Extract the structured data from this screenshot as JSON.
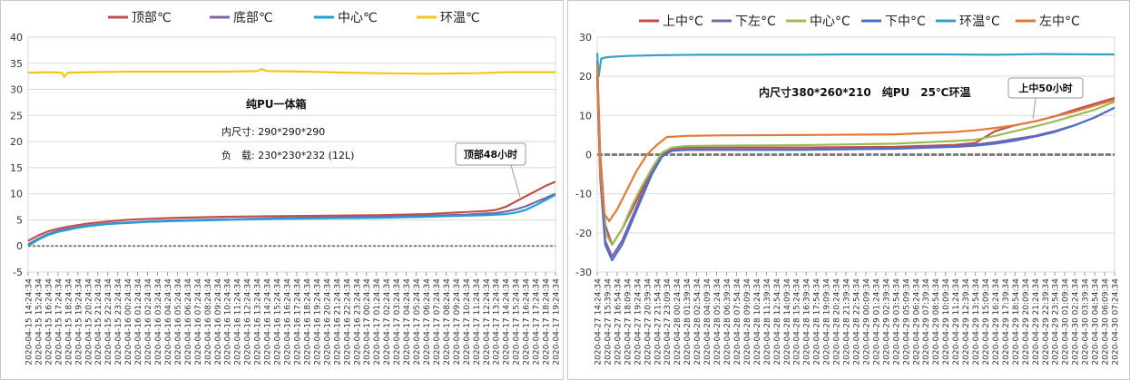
{
  "chart_data": [
    {
      "type": "line",
      "ylim": [
        -5,
        40
      ],
      "yticks": [
        -5,
        0,
        5,
        10,
        15,
        20,
        25,
        30,
        35,
        40
      ],
      "grid": "horizontal",
      "legend": "top",
      "annotations": [
        "纯PU一体箱",
        "内尺寸: 290*290*290",
        "负　载: 230*230*232 (12L)"
      ],
      "callout": "顶部48小时",
      "baseline": {
        "y": 0,
        "color": "#808080"
      },
      "x_labels": [
        "2020-04-15 14:24:34",
        "2020-04-15 15:24:34",
        "2020-04-15 16:24:34",
        "2020-04-15 17:24:34",
        "2020-04-15 18:24:34",
        "2020-04-15 19:24:34",
        "2020-04-15 20:24:34",
        "2020-04-15 21:24:34",
        "2020-04-15 22:24:34",
        "2020-04-15 23:24:34",
        "2020-04-16 00:24:34",
        "2020-04-16 01:24:34",
        "2020-04-16 02:24:34",
        "2020-04-16 03:24:34",
        "2020-04-16 04:24:34",
        "2020-04-16 05:24:34",
        "2020-04-16 06:24:34",
        "2020-04-16 07:24:34",
        "2020-04-16 08:24:34",
        "2020-04-16 09:24:34",
        "2020-04-16 10:24:34",
        "2020-04-16 11:24:34",
        "2020-04-16 12:24:34",
        "2020-04-16 13:24:34",
        "2020-04-16 14:24:34",
        "2020-04-16 15:24:34",
        "2020-04-16 16:24:34",
        "2020-04-16 17:24:34",
        "2020-04-16 18:24:34",
        "2020-04-16 19:24:34",
        "2020-04-16 20:24:34",
        "2020-04-16 21:24:34",
        "2020-04-16 22:24:34",
        "2020-04-16 23:24:34",
        "2020-04-17 00:24:34",
        "2020-04-17 01:24:34",
        "2020-04-17 02:24:34",
        "2020-04-17 03:24:34",
        "2020-04-17 04:24:34",
        "2020-04-17 05:24:34",
        "2020-04-17 06:24:34",
        "2020-04-17 07:24:34",
        "2020-04-17 08:24:34",
        "2020-04-17 09:24:34",
        "2020-04-17 10:24:34",
        "2020-04-17 11:24:34",
        "2020-04-17 12:24:34",
        "2020-04-17 13:24:34",
        "2020-04-17 14:24:34",
        "2020-04-17 15:24:34",
        "2020-04-17 16:24:34",
        "2020-04-17 17:24:34",
        "2020-04-17 18:24:34",
        "2020-04-17 19:24:34"
      ],
      "series": [
        {
          "name": "顶部℃",
          "color": "#c0504d",
          "x": [
            0,
            1,
            2,
            3,
            4,
            5,
            6,
            8,
            10,
            12,
            15,
            20,
            25,
            30,
            35,
            40,
            44,
            46,
            47,
            48,
            49,
            50,
            51,
            52,
            53
          ],
          "values": [
            1,
            2,
            2.8,
            3.3,
            3.7,
            4,
            4.3,
            4.7,
            5,
            5.2,
            5.4,
            5.6,
            5.7,
            5.8,
            5.9,
            6.1,
            6.5,
            6.7,
            6.9,
            7.5,
            8.5,
            9.5,
            10.5,
            11.5,
            12.3
          ]
        },
        {
          "name": "底部℃",
          "color": "#8064a2",
          "x": [
            0,
            1,
            2,
            3,
            4,
            5,
            6,
            8,
            10,
            12,
            15,
            20,
            25,
            30,
            35,
            40,
            44,
            46,
            47,
            48,
            49,
            50,
            51,
            52,
            53
          ],
          "values": [
            0.3,
            1.4,
            2.3,
            2.9,
            3.3,
            3.6,
            3.9,
            4.3,
            4.5,
            4.7,
            4.9,
            5.1,
            5.3,
            5.5,
            5.6,
            5.8,
            6,
            6.2,
            6.3,
            6.6,
            7,
            7.6,
            8.4,
            9.2,
            10
          ]
        },
        {
          "name": "中心℃",
          "color": "#1fa0d8",
          "x": [
            0,
            1,
            2,
            3,
            4,
            5,
            6,
            8,
            10,
            12,
            15,
            20,
            25,
            30,
            35,
            40,
            44,
            46,
            47,
            48,
            49,
            50,
            51,
            52,
            53
          ],
          "values": [
            0,
            1.2,
            2.1,
            2.7,
            3.1,
            3.5,
            3.8,
            4.2,
            4.4,
            4.6,
            4.8,
            5,
            5.2,
            5.3,
            5.4,
            5.6,
            5.8,
            5.9,
            6,
            6.1,
            6.4,
            6.9,
            7.8,
            8.8,
            9.8
          ]
        },
        {
          "name": "环温℃",
          "color": "#f5c518",
          "x": [
            0,
            2,
            3.4,
            3.6,
            4,
            6,
            10,
            15,
            20,
            23,
            23.5,
            24,
            28,
            32,
            35,
            40,
            45,
            48,
            50,
            53
          ],
          "values": [
            33.2,
            33.3,
            33.2,
            32.4,
            33.2,
            33.3,
            33.4,
            33.4,
            33.4,
            33.5,
            33.9,
            33.5,
            33.4,
            33.2,
            33.1,
            33,
            33.1,
            33.3,
            33.3,
            33.3
          ]
        }
      ]
    },
    {
      "type": "line",
      "ylim": [
        -30,
        30
      ],
      "yticks": [
        -30,
        -20,
        -10,
        0,
        10,
        20,
        30
      ],
      "grid": "horizontal",
      "legend": "top",
      "annotations": [
        "内尺寸380*260*210　纯PU　25℃环温"
      ],
      "callout": "上中50小时",
      "baseline": {
        "y": 0,
        "color": "#808080"
      },
      "x_labels": [
        "2020-04-27 14:24:34",
        "2020-04-27 15:39:34",
        "2020-04-27 16:54:34",
        "2020-04-27 18:09:34",
        "2020-04-27 19:24:34",
        "2020-04-27 20:39:34",
        "2020-04-27 21:54:34",
        "2020-04-27 23:09:34",
        "2020-04-28 00:24:34",
        "2020-04-28 01:39:34",
        "2020-04-28 02:54:34",
        "2020-04-28 04:09:34",
        "2020-04-28 05:24:34",
        "2020-04-28 06:39:34",
        "2020-04-28 07:54:34",
        "2020-04-28 09:09:34",
        "2020-04-28 10:24:34",
        "2020-04-28 11:39:34",
        "2020-04-28 12:54:34",
        "2020-04-28 14:09:34",
        "2020-04-28 15:24:34",
        "2020-04-28 16:39:34",
        "2020-04-28 17:54:34",
        "2020-04-28 19:09:34",
        "2020-04-28 20:24:34",
        "2020-04-28 21:39:34",
        "2020-04-28 22:54:34",
        "2020-04-29 00:09:34",
        "2020-04-29 01:24:34",
        "2020-04-29 02:39:34",
        "2020-04-29 03:54:34",
        "2020-04-29 05:09:34",
        "2020-04-29 06:24:34",
        "2020-04-29 07:39:34",
        "2020-04-29 08:54:34",
        "2020-04-29 10:09:34",
        "2020-04-29 11:24:34",
        "2020-04-29 12:39:34",
        "2020-04-29 13:54:34",
        "2020-04-29 15:09:34",
        "2020-04-29 16:24:34",
        "2020-04-29 17:39:34",
        "2020-04-29 18:54:34",
        "2020-04-29 20:09:34",
        "2020-04-29 21:24:34",
        "2020-04-29 22:39:34",
        "2020-04-29 23:54:34",
        "2020-04-30 01:09:34",
        "2020-04-30 02:24:34",
        "2020-04-30 03:39:34",
        "2020-04-30 04:54:34",
        "2020-04-30 06:09:34",
        "2020-04-30 07:24:34"
      ],
      "series": [
        {
          "name": "上中°C",
          "color": "#c0504d",
          "x": [
            0,
            0.3,
            0.8,
            1.5,
            2.5,
            3.5,
            4.5,
            5.5,
            6.5,
            7.5,
            9,
            12,
            20,
            30,
            36,
            38,
            40,
            42,
            44,
            46,
            48,
            50,
            52
          ],
          "values": [
            24,
            0,
            -18,
            -23,
            -19,
            -14,
            -9,
            -4,
            0,
            1.5,
            1.8,
            1.8,
            1.8,
            2,
            2.5,
            3,
            6,
            7.5,
            8.5,
            9.8,
            11.5,
            13,
            14.5
          ]
        },
        {
          "name": "下左°C",
          "color": "#8064a2",
          "x": [
            0,
            0.3,
            0.8,
            1.5,
            2.5,
            3.5,
            4.5,
            5.5,
            6.5,
            7.5,
            9,
            12,
            20,
            30,
            36,
            38,
            40,
            42,
            44,
            46,
            48,
            50,
            52
          ],
          "values": [
            20,
            -5,
            -22,
            -26,
            -22,
            -16,
            -10,
            -4.5,
            -0.5,
            1,
            1.3,
            1.3,
            1.3,
            1.6,
            2.2,
            2.6,
            3.2,
            4,
            4.8,
            6,
            7.5,
            9.5,
            12
          ]
        },
        {
          "name": "中心°C",
          "color": "#9bbb59",
          "x": [
            0,
            0.3,
            0.8,
            1.5,
            2.5,
            3.5,
            4.5,
            5.5,
            6.5,
            7.5,
            9,
            12,
            20,
            30,
            36,
            38,
            40,
            42,
            44,
            46,
            48,
            50,
            52
          ],
          "values": [
            22,
            -3,
            -20,
            -23,
            -19,
            -13,
            -8,
            -3.5,
            0.5,
            1.8,
            2.2,
            2.3,
            2.4,
            2.8,
            3.5,
            3.8,
            4.8,
            6,
            7.2,
            8.5,
            10,
            11.5,
            13.5
          ]
        },
        {
          "name": "下中°C",
          "color": "#4f6ec6",
          "x": [
            0,
            0.3,
            0.8,
            1.5,
            2.5,
            3.5,
            4.5,
            5.5,
            6.5,
            7.5,
            9,
            12,
            20,
            30,
            36,
            38,
            40,
            42,
            44,
            46,
            48,
            50,
            52
          ],
          "values": [
            20,
            -6,
            -23,
            -27,
            -23,
            -17,
            -11,
            -5,
            -0.5,
            1,
            1.2,
            1.2,
            1.2,
            1.5,
            2,
            2.3,
            2.8,
            3.6,
            4.6,
            5.8,
            7.5,
            9.5,
            12
          ]
        },
        {
          "name": "环温°C",
          "color": "#3a9fc5",
          "x": [
            0,
            0.15,
            0.4,
            0.8,
            1.5,
            3,
            6,
            10,
            15,
            20,
            25,
            30,
            35,
            40,
            45,
            50,
            52
          ],
          "values": [
            26,
            20,
            24.5,
            24.8,
            25,
            25.2,
            25.4,
            25.5,
            25.5,
            25.5,
            25.6,
            25.6,
            25.6,
            25.5,
            25.7,
            25.6,
            25.6
          ]
        },
        {
          "name": "左中°C",
          "color": "#e07b39",
          "x": [
            0,
            0.3,
            0.7,
            1.2,
            2,
            3,
            4,
            5,
            6,
            7,
            9,
            12,
            20,
            30,
            36,
            38,
            40,
            42,
            44,
            46,
            48,
            50,
            52
          ],
          "values": [
            23,
            -5,
            -15,
            -17,
            -14,
            -9,
            -4,
            0,
            2.5,
            4.5,
            4.8,
            4.9,
            5,
            5.2,
            5.8,
            6.2,
            6.8,
            7.5,
            8.5,
            9.8,
            11,
            12.5,
            14
          ]
        }
      ]
    }
  ]
}
